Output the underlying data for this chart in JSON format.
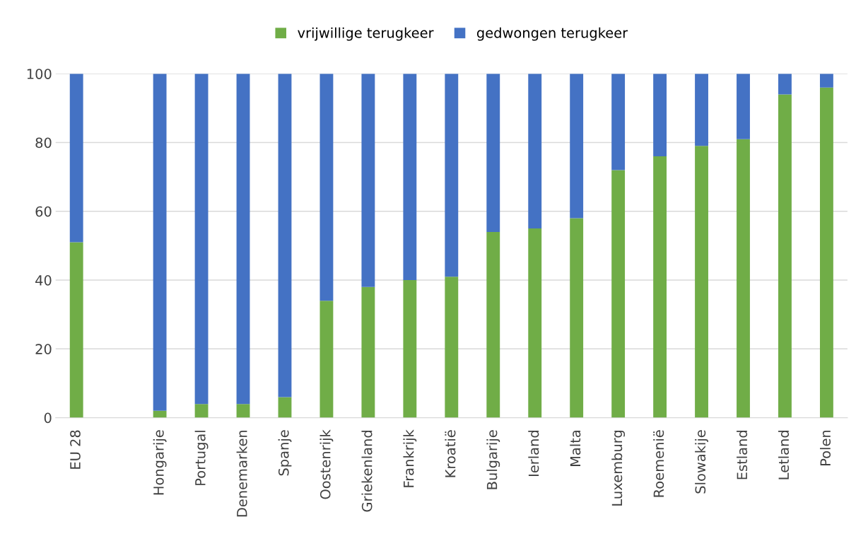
{
  "chart_data": {
    "type": "bar",
    "stacked": true,
    "categories": [
      "EU 28",
      null,
      "Hongarije",
      "Portugal",
      "Denemarken",
      "Spanje",
      "Oostenrijk",
      "Griekenland",
      "Frankrijk",
      "Kroatië",
      "Bulgarije",
      "Ierland",
      "Malta",
      "Luxemburg",
      "Roemenië",
      "Slowakije",
      "Estland",
      "Letland",
      "Polen"
    ],
    "series": [
      {
        "name": "vrijwillige terugkeer",
        "color": "#70ad47",
        "values": [
          51,
          null,
          2,
          4,
          4,
          6,
          34,
          38,
          40,
          41,
          54,
          55,
          58,
          72,
          76,
          79,
          81,
          94,
          96
        ]
      },
      {
        "name": "gedwongen terugkeer",
        "color": "#4472c4",
        "values": [
          49,
          null,
          98,
          96,
          96,
          94,
          66,
          62,
          60,
          59,
          46,
          45,
          42,
          28,
          24,
          21,
          19,
          6,
          4
        ]
      }
    ],
    "ylim": [
      0,
      100
    ],
    "yticks": [
      0,
      20,
      40,
      60,
      80,
      100
    ],
    "grid": "y",
    "legend": "top"
  }
}
